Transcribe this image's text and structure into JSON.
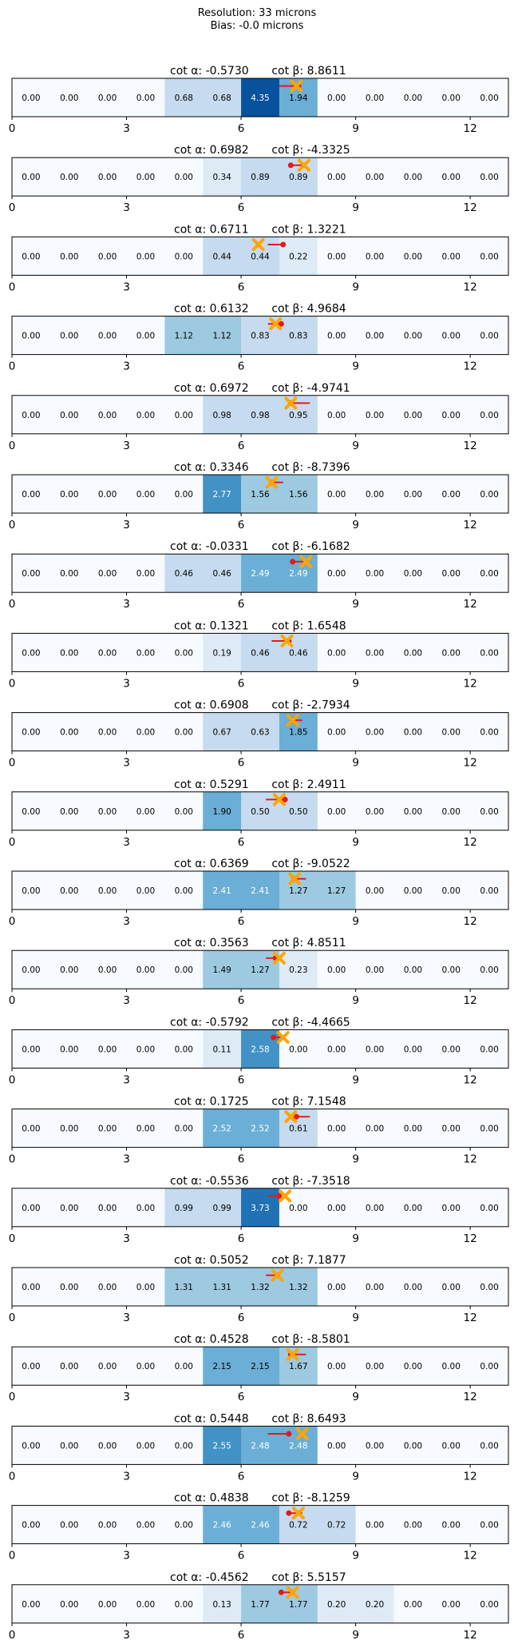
{
  "header": {
    "line1": "Resolution: 33 microns",
    "line2": "Bias: -0.0 microns"
  },
  "colors": {
    "cell_scale": [
      "#f7fbff",
      "#deebf7",
      "#c6dbef",
      "#9ecae1",
      "#6baed6",
      "#4292c6",
      "#2171b5",
      "#08519c"
    ],
    "cell_text_dark": "#000000",
    "cell_text_light": "#ffffff",
    "true_marker": "#e31a1c",
    "pred_marker": "#ffa500",
    "frame": "#000000"
  },
  "chart_data": {
    "type": "heatmap",
    "xlim": [
      0,
      13
    ],
    "xticks": [
      0,
      3,
      6,
      9,
      12
    ],
    "color_range": [
      0,
      4.35
    ],
    "panels": [
      {
        "alpha": "-0.5730",
        "beta": "8.8611",
        "values": [
          0,
          0,
          0,
          0,
          0.68,
          0.68,
          4.35,
          1.94,
          0,
          0,
          0,
          0,
          0
        ],
        "true_x": 7.5,
        "true_dx": -0.5,
        "pred_x": 7.45
      },
      {
        "alpha": "0.6982",
        "beta": "-4.3325",
        "values": [
          0,
          0,
          0,
          0,
          0,
          0.34,
          0.89,
          0.89,
          0,
          0,
          0,
          0,
          0
        ],
        "true_x": 7.3,
        "true_dx": 0.4,
        "pred_x": 7.65
      },
      {
        "alpha": "0.6711",
        "beta": "1.3221",
        "values": [
          0,
          0,
          0,
          0,
          0,
          0.44,
          0.44,
          0.22,
          0,
          0,
          0,
          0,
          0
        ],
        "true_x": 7.1,
        "true_dx": -0.4,
        "pred_x": 6.45
      },
      {
        "alpha": "0.6132",
        "beta": "4.9684",
        "values": [
          0,
          0,
          0,
          0,
          1.12,
          1.12,
          0.83,
          0.83,
          0,
          0,
          0,
          0,
          0
        ],
        "true_x": 7.05,
        "true_dx": -0.35,
        "pred_x": 6.9
      },
      {
        "alpha": "0.6972",
        "beta": "-4.9741",
        "values": [
          0,
          0,
          0,
          0,
          0,
          0.98,
          0.98,
          0.95,
          0,
          0,
          0,
          0,
          0
        ],
        "true_x": 7.3,
        "true_dx": 0.5,
        "pred_x": 7.3
      },
      {
        "alpha": "0.3346",
        "beta": "-8.7396",
        "values": [
          0,
          0,
          0,
          0,
          0,
          2.77,
          1.56,
          1.56,
          0,
          0,
          0,
          0,
          0
        ],
        "true_x": 6.8,
        "true_dx": 0.3,
        "pred_x": 6.8
      },
      {
        "alpha": "-0.0331",
        "beta": "-6.1682",
        "values": [
          0,
          0,
          0,
          0,
          0.46,
          0.46,
          2.49,
          2.49,
          0,
          0,
          0,
          0,
          0
        ],
        "true_x": 7.35,
        "true_dx": 0.4,
        "pred_x": 7.7
      },
      {
        "alpha": "0.1321",
        "beta": "1.6548",
        "values": [
          0,
          0,
          0,
          0,
          0,
          0.19,
          0.46,
          0.46,
          0,
          0,
          0,
          0,
          0
        ],
        "true_x": 7.25,
        "true_dx": -0.45,
        "pred_x": 7.2
      },
      {
        "alpha": "0.6908",
        "beta": "-2.7934",
        "values": [
          0,
          0,
          0,
          0,
          0,
          0.67,
          0.63,
          1.85,
          0,
          0,
          0,
          0,
          0
        ],
        "true_x": 7.35,
        "true_dx": 0.25,
        "pred_x": 7.35
      },
      {
        "alpha": "0.5291",
        "beta": "2.4911",
        "values": [
          0,
          0,
          0,
          0,
          0,
          1.9,
          0.5,
          0.5,
          0,
          0,
          0,
          0,
          0
        ],
        "true_x": 7.15,
        "true_dx": -0.5,
        "pred_x": 7.0
      },
      {
        "alpha": "0.6369",
        "beta": "-9.0522",
        "values": [
          0,
          0,
          0,
          0,
          0,
          2.41,
          2.41,
          1.27,
          1.27,
          0,
          0,
          0,
          0
        ],
        "true_x": 7.4,
        "true_dx": 0.3,
        "pred_x": 7.4
      },
      {
        "alpha": "0.3563",
        "beta": "4.8511",
        "values": [
          0,
          0,
          0,
          0,
          0,
          1.49,
          1.27,
          0.23,
          0,
          0,
          0,
          0,
          0
        ],
        "true_x": 6.9,
        "true_dx": -0.25,
        "pred_x": 7.0
      },
      {
        "alpha": "-0.5792",
        "beta": "-4.4665",
        "values": [
          0,
          0,
          0,
          0,
          0,
          0.11,
          2.58,
          0,
          0,
          0,
          0,
          0,
          0
        ],
        "true_x": 6.85,
        "true_dx": 0.3,
        "pred_x": 7.1
      },
      {
        "alpha": "0.1725",
        "beta": "7.1548",
        "values": [
          0,
          0,
          0,
          0,
          0,
          2.52,
          2.52,
          0.61,
          0,
          0,
          0,
          0,
          0
        ],
        "true_x": 7.45,
        "true_dx": 0.35,
        "pred_x": 7.3
      },
      {
        "alpha": "-0.5536",
        "beta": "-7.3518",
        "values": [
          0,
          0,
          0,
          0,
          0.99,
          0.99,
          3.73,
          0,
          0,
          0,
          0,
          0,
          0
        ],
        "true_x": 7.0,
        "true_dx": -0.3,
        "pred_x": 7.15
      },
      {
        "alpha": "0.5052",
        "beta": "7.1877",
        "values": [
          0,
          0,
          0,
          0,
          1.31,
          1.31,
          1.32,
          1.32,
          0,
          0,
          0,
          0,
          0
        ],
        "true_x": 6.95,
        "true_dx": -0.3,
        "pred_x": 6.95
      },
      {
        "alpha": "0.4528",
        "beta": "-8.5801",
        "values": [
          0,
          0,
          0,
          0,
          0,
          2.15,
          2.15,
          1.67,
          0,
          0,
          0,
          0,
          0
        ],
        "true_x": 7.3,
        "true_dx": 0.4,
        "pred_x": 7.35
      },
      {
        "alpha": "0.5448",
        "beta": "8.6493",
        "values": [
          0,
          0,
          0,
          0,
          0,
          2.55,
          2.48,
          2.48,
          0,
          0,
          0,
          0,
          0
        ],
        "true_x": 7.25,
        "true_dx": -0.55,
        "pred_x": 7.6
      },
      {
        "alpha": "0.4838",
        "beta": "-8.1259",
        "values": [
          0,
          0,
          0,
          0,
          0,
          2.46,
          2.46,
          0.72,
          0.72,
          0,
          0,
          0,
          0
        ],
        "true_x": 7.25,
        "true_dx": 0.35,
        "pred_x": 7.5
      },
      {
        "alpha": "-0.4562",
        "beta": "5.5157",
        "values": [
          0,
          0,
          0,
          0,
          0,
          0.13,
          1.77,
          1.77,
          0.2,
          0.2,
          0,
          0,
          0
        ],
        "true_x": 7.05,
        "true_dx": 0.3,
        "pred_x": 7.35
      }
    ]
  }
}
